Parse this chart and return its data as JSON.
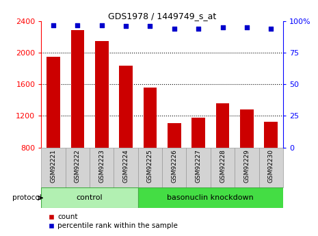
{
  "title": "GDS1978 / 1449749_s_at",
  "samples": [
    "GSM92221",
    "GSM92222",
    "GSM92223",
    "GSM92224",
    "GSM92225",
    "GSM92226",
    "GSM92227",
    "GSM92228",
    "GSM92229",
    "GSM92230"
  ],
  "counts": [
    1950,
    2290,
    2150,
    1840,
    1560,
    1110,
    1175,
    1360,
    1280,
    1130
  ],
  "percentile_ranks": [
    97,
    97,
    97,
    96,
    96,
    94,
    94,
    95,
    95,
    94
  ],
  "bar_color": "#cc0000",
  "dot_color": "#0000cc",
  "ylim_left": [
    800,
    2400
  ],
  "ylim_right": [
    0,
    100
  ],
  "yticks_left": [
    800,
    1200,
    1600,
    2000,
    2400
  ],
  "yticks_right": [
    0,
    25,
    50,
    75,
    100
  ],
  "grid_lines": [
    1200,
    1600,
    2000
  ],
  "control_samples": 4,
  "control_label": "control",
  "knockdown_label": "basonuclin knockdown",
  "protocol_label": "protocol",
  "legend_count_label": "count",
  "legend_pct_label": "percentile rank within the sample",
  "bg_color": "#ffffff",
  "tick_bg_color": "#d3d3d3",
  "tick_border_color": "#999999",
  "control_bg": "#b2f0b2",
  "knockdown_bg": "#44dd44",
  "bar_width": 0.55
}
